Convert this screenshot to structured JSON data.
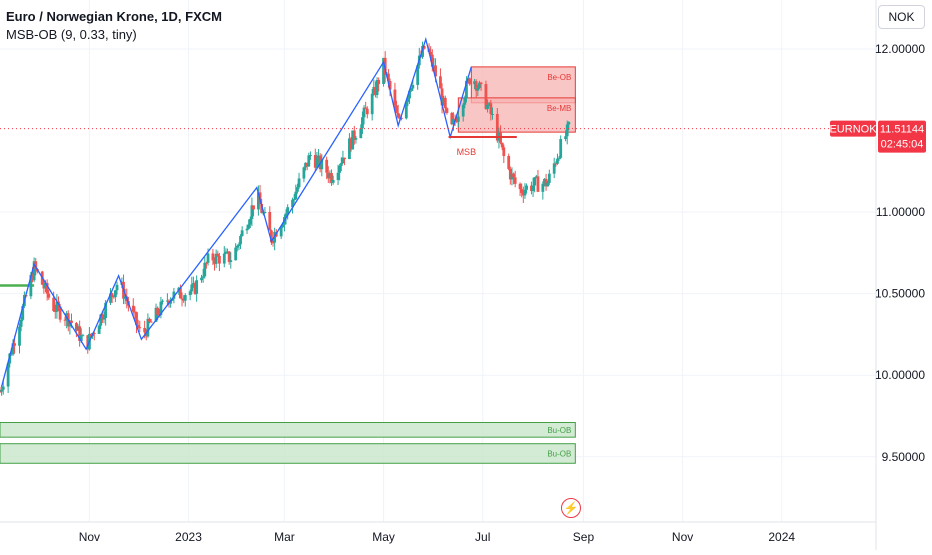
{
  "header": {
    "title": "Euro / Norwegian Krone, 1D, FXCM",
    "indicator": "MSB-OB (9, 0.33, tiny)"
  },
  "currency_selector": "NOK",
  "colors": {
    "up": "#26a69a",
    "down": "#ef5350",
    "zigzag": "#2962ff",
    "bear_zone_fill": "#f7b3b3",
    "bear_zone_border": "#e53935",
    "bull_zone_fill": "#c8e6c9",
    "bull_zone_border": "#43a047",
    "price_tag": "#f23645",
    "axis_text": "#131722"
  },
  "price_tag": {
    "symbol": "EURNOK",
    "price": "11.51144",
    "countdown": "02:45:04",
    "value": 11.51144
  },
  "chart_data": {
    "type": "candlestick",
    "title": "Euro / Norwegian Krone, 1D, FXCM",
    "y_ticks": [
      {
        "value": 12.0,
        "label": "12.00000"
      },
      {
        "value": 11.0,
        "label": "11.00000"
      },
      {
        "value": 10.5,
        "label": "10.50000"
      },
      {
        "value": 10.0,
        "label": "10.00000"
      },
      {
        "value": 9.5,
        "label": "9.50000"
      }
    ],
    "x_ticks": [
      {
        "date": "2022-11-01",
        "label": "Nov"
      },
      {
        "date": "2023-01-01",
        "label": "2023"
      },
      {
        "date": "2023-03-01",
        "label": "Mar"
      },
      {
        "date": "2023-05-01",
        "label": "May"
      },
      {
        "date": "2023-07-01",
        "label": "Jul"
      },
      {
        "date": "2023-09-01",
        "label": "Sep"
      },
      {
        "date": "2023-11-01",
        "label": "Nov"
      },
      {
        "date": "2024-01-01",
        "label": "2024"
      }
    ],
    "x_range": [
      "2022-09-07",
      "2024-02-28"
    ],
    "y_range": [
      9.1,
      12.3
    ],
    "last_price": 11.51144,
    "zigzag": [
      [
        "2022-09-08",
        9.93
      ],
      [
        "2022-09-28",
        10.68
      ],
      [
        "2022-10-30",
        10.16
      ],
      [
        "2022-11-19",
        10.61
      ],
      [
        "2022-12-03",
        10.22
      ],
      [
        "2023-02-12",
        11.15
      ],
      [
        "2023-02-21",
        10.82
      ],
      [
        "2023-05-01",
        11.92
      ],
      [
        "2023-05-10",
        11.53
      ],
      [
        "2023-05-27",
        12.06
      ],
      [
        "2023-06-11",
        11.46
      ],
      [
        "2023-06-24",
        11.89
      ]
    ],
    "bearish_order_blocks": [
      {
        "label": "Be-OB",
        "start": "2023-06-24",
        "end": "2023-08-27",
        "top": 11.89,
        "bottom": 11.67
      },
      {
        "label": "Be-MB",
        "start": "2023-06-16",
        "end": "2023-08-27",
        "top": 11.7,
        "bottom": 11.49
      }
    ],
    "bullish_order_blocks": [
      {
        "label": "Bu-OB",
        "start": "2022-09-07",
        "end": "2023-08-27",
        "top": 9.71,
        "bottom": 9.62
      },
      {
        "label": "Bu-OB",
        "start": "2022-09-07",
        "end": "2023-08-27",
        "top": 9.58,
        "bottom": 9.46
      }
    ],
    "structure_breaks": [
      {
        "label": "MSB",
        "start": "2023-06-10",
        "end": "2023-07-22",
        "price": 11.46
      }
    ],
    "support_lines": [
      {
        "start": "2022-09-07",
        "end": "2022-09-28",
        "price": 10.55
      }
    ],
    "path_points": [
      [
        "2022-09-07",
        9.9
      ],
      [
        "2022-09-28",
        10.66
      ],
      [
        "2022-10-10",
        10.42
      ],
      [
        "2022-10-20",
        10.34
      ],
      [
        "2022-10-30",
        10.18
      ],
      [
        "2022-11-19",
        10.58
      ],
      [
        "2022-12-03",
        10.24
      ],
      [
        "2022-12-20",
        10.48
      ],
      [
        "2023-01-04",
        10.52
      ],
      [
        "2023-01-14",
        10.72
      ],
      [
        "2023-01-28",
        10.72
      ],
      [
        "2023-02-12",
        11.1
      ],
      [
        "2023-02-21",
        10.84
      ],
      [
        "2023-03-04",
        11.03
      ],
      [
        "2023-03-17",
        11.35
      ],
      [
        "2023-03-30",
        11.22
      ],
      [
        "2023-04-12",
        11.45
      ],
      [
        "2023-04-25",
        11.72
      ],
      [
        "2023-05-01",
        11.9
      ],
      [
        "2023-05-10",
        11.55
      ],
      [
        "2023-05-19",
        11.82
      ],
      [
        "2023-05-27",
        12.03
      ],
      [
        "2023-06-04",
        11.78
      ],
      [
        "2023-06-11",
        11.48
      ],
      [
        "2023-06-24",
        11.85
      ],
      [
        "2023-07-02",
        11.7
      ],
      [
        "2023-07-08",
        11.55
      ],
      [
        "2023-07-15",
        11.3
      ],
      [
        "2023-07-23",
        11.13
      ],
      [
        "2023-08-02",
        11.17
      ],
      [
        "2023-08-10",
        11.18
      ],
      [
        "2023-08-17",
        11.38
      ],
      [
        "2023-08-23",
        11.51
      ]
    ]
  }
}
